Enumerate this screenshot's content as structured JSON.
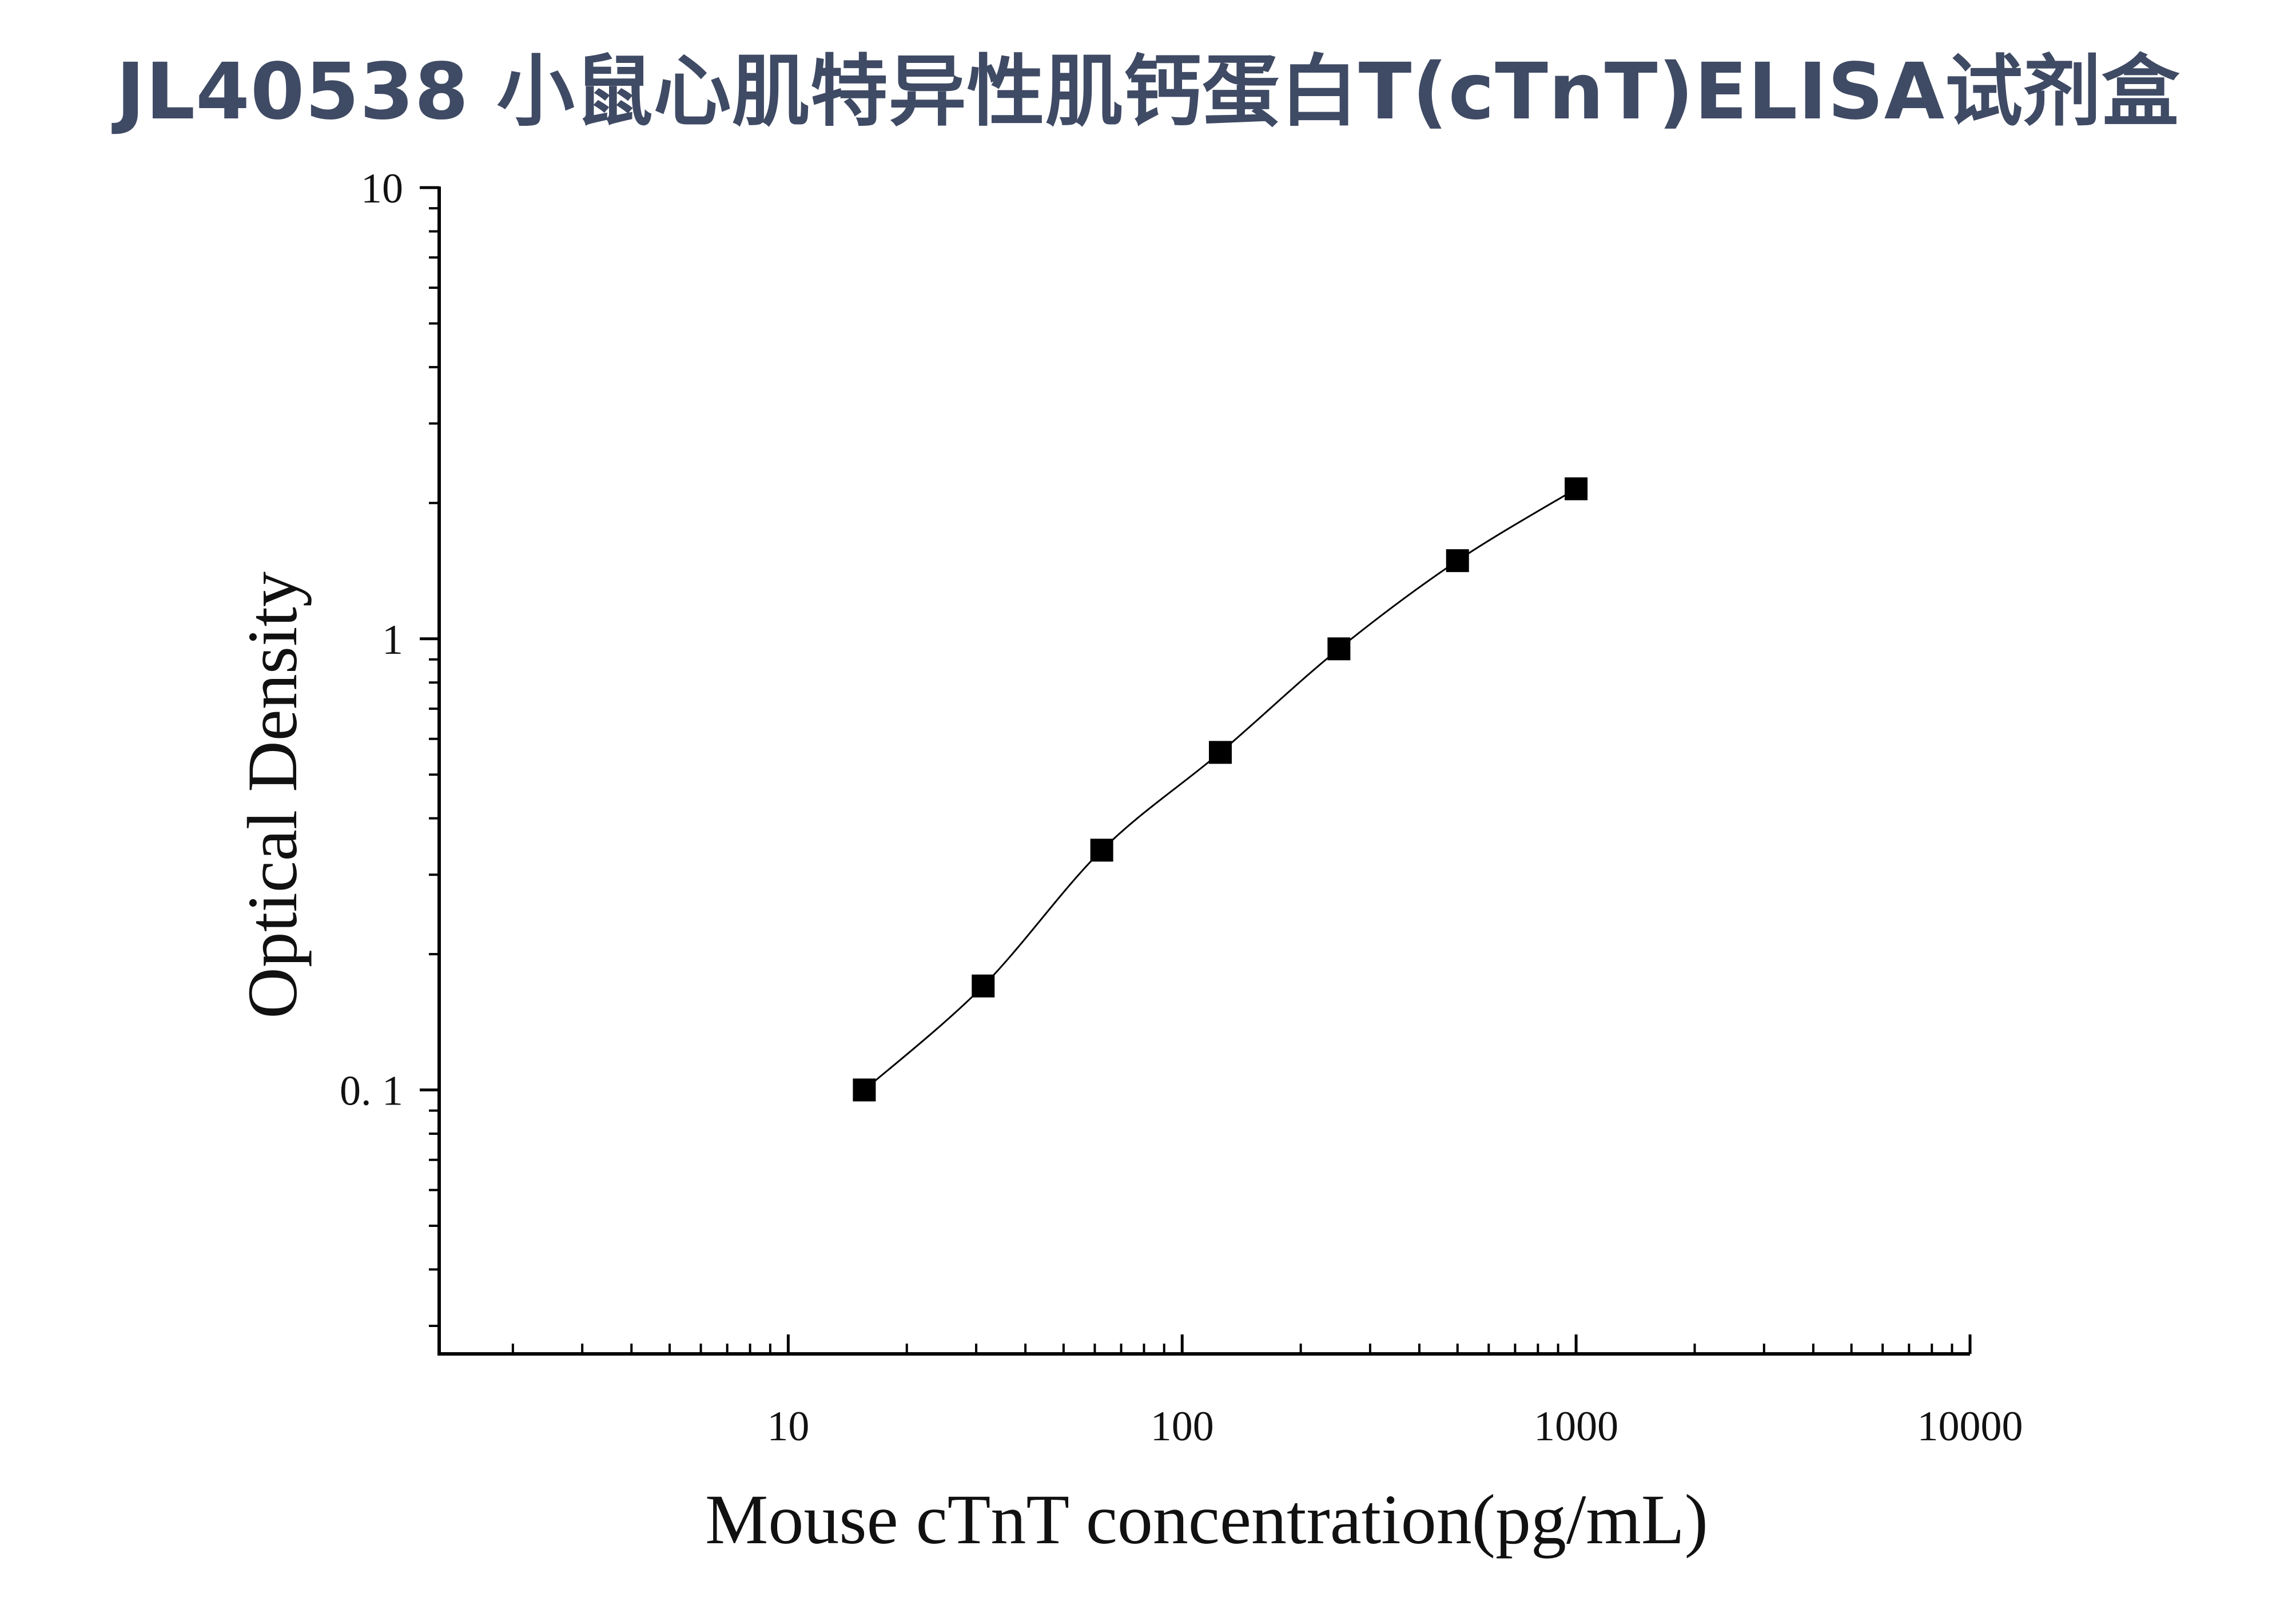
{
  "title": "JL40538 小鼠心肌特异性肌钙蛋白T(cTnT)ELISA试剂盒",
  "chart_data": {
    "type": "scatter",
    "xlabel": "Mouse cTnT concentration(pg/mL)",
    "ylabel": "Optical Density",
    "x_scale": "log",
    "y_scale": "log",
    "xlim": [
      1.3,
      10000
    ],
    "ylim": [
      0.026,
      10
    ],
    "x_ticks": [
      10,
      100,
      1000,
      10000
    ],
    "x_tick_labels": [
      "10",
      "100",
      "1000",
      "10000"
    ],
    "y_ticks": [
      0.1,
      1,
      10
    ],
    "y_tick_labels": [
      "0. 1",
      "1",
      "10"
    ],
    "grid": false,
    "legend": "none",
    "series": [
      {
        "x": [
          15.6,
          31.25,
          62.5,
          125,
          250,
          500,
          1000
        ],
        "y": [
          0.1,
          0.17,
          0.34,
          0.56,
          0.95,
          1.49,
          2.15
        ],
        "marker": "square",
        "fit_line": true
      }
    ],
    "colors": {
      "marker": "#000000",
      "line": "#000000",
      "title": "#3f4a64"
    }
  }
}
